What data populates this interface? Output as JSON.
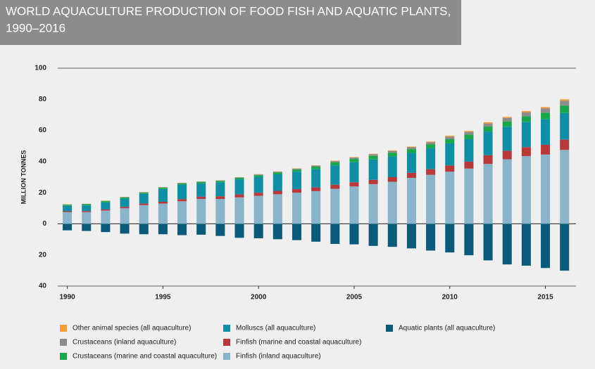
{
  "chart_data": {
    "type": "bar",
    "title": [
      "WORLD AQUACULTURE PRODUCTION OF FOOD FISH AND AQUATIC PLANTS,",
      "1990–2016"
    ],
    "y_label": "MILLION TONNES",
    "stacked": true,
    "x": [
      1990,
      1991,
      1992,
      1993,
      1994,
      1995,
      1996,
      1997,
      1998,
      1999,
      2000,
      2001,
      2002,
      2003,
      2004,
      2005,
      2006,
      2007,
      2008,
      2009,
      2010,
      2011,
      2012,
      2013,
      2014,
      2015,
      2016
    ],
    "xlim": [
      1989.5,
      2016.6
    ],
    "xticks": [
      1990,
      1995,
      2000,
      2005,
      2010,
      2015
    ],
    "ylim": [
      -40,
      100
    ],
    "yticks": [
      100,
      80,
      60,
      40,
      20,
      0,
      {
        "value": -20,
        "label": "20"
      },
      {
        "value": -40,
        "label": "40"
      }
    ],
    "series": [
      {
        "name": "Other animal species (all aquaculture)",
        "color": "#f39c38",
        "values": [
          0.1,
          0.1,
          0.1,
          0.1,
          0.1,
          0.1,
          0.1,
          0.1,
          0.1,
          0.1,
          0.2,
          0.2,
          0.2,
          0.2,
          0.3,
          0.3,
          0.3,
          0.4,
          0.4,
          0.5,
          0.6,
          0.6,
          0.8,
          0.7,
          0.8,
          0.8,
          0.9
        ]
      },
      {
        "name": "Crustaceans (inland aquaculture)",
        "color": "#8c8c8c",
        "values": [
          0.2,
          0.2,
          0.2,
          0.3,
          0.3,
          0.3,
          0.3,
          0.3,
          0.3,
          0.3,
          0.4,
          0.4,
          0.5,
          0.6,
          0.8,
          0.9,
          1.0,
          1.1,
          1.2,
          1.4,
          1.6,
          1.8,
          2.0,
          2.2,
          2.5,
          2.8,
          3.1
        ]
      },
      {
        "name": "Crustaceans (marine and coastal aquaculture)",
        "color": "#1aa74b",
        "values": [
          0.7,
          0.8,
          0.8,
          0.7,
          0.8,
          0.8,
          0.8,
          0.9,
          0.9,
          1.0,
          1.1,
          1.3,
          1.4,
          1.7,
          2.0,
          2.1,
          2.3,
          2.4,
          2.4,
          2.5,
          2.7,
          2.9,
          3.2,
          3.4,
          3.8,
          4.2,
          4.8
        ]
      },
      {
        "name": "Molluscs (all aquaculture)",
        "color": "#0f8ea5",
        "values": [
          3.5,
          3.6,
          4.5,
          5.3,
          6.2,
          8.2,
          9.3,
          8.5,
          9.0,
          9.7,
          10.2,
          10.6,
          11.2,
          11.7,
          12.4,
          12.9,
          13.1,
          13.3,
          12.8,
          13.4,
          14.2,
          14.4,
          15.2,
          15.5,
          16.1,
          16.4,
          17.1
        ]
      },
      {
        "name": "Finfish (marine and coastal aquaculture)",
        "color": "#b8393a",
        "values": [
          0.6,
          0.7,
          0.8,
          0.9,
          1.0,
          1.2,
          1.4,
          1.5,
          1.7,
          1.9,
          2.0,
          2.2,
          2.3,
          2.4,
          2.6,
          2.7,
          2.8,
          3.0,
          3.3,
          3.6,
          4.0,
          4.5,
          5.6,
          5.4,
          5.8,
          6.3,
          6.6
        ]
      },
      {
        "name": "Finfish (inland aquaculture)",
        "color": "#8ab4c9",
        "values": [
          7.5,
          7.5,
          8.5,
          10,
          12,
          13,
          14.5,
          16,
          16,
          17,
          18,
          19,
          20,
          21,
          22.5,
          24,
          25.5,
          27,
          29.5,
          31.5,
          33.5,
          35.5,
          38.5,
          41.5,
          43.5,
          44.5,
          47.5
        ]
      },
      {
        "name": "Aquatic plants (all aquaculture)",
        "color": "#0c5a7a",
        "values": [
          -4.2,
          -4.6,
          -5.3,
          -6.3,
          -6.7,
          -6.7,
          -7.3,
          -7.0,
          -7.8,
          -9.0,
          -9.3,
          -9.9,
          -10.5,
          -11.5,
          -12.9,
          -13.2,
          -14.2,
          -14.8,
          -15.8,
          -17.2,
          -18.4,
          -20.2,
          -23.5,
          -26.1,
          -26.9,
          -28.4,
          -30.1
        ]
      }
    ]
  }
}
